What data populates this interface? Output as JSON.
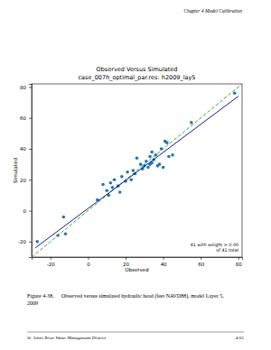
{
  "page": {
    "header": "Chapter 4 Model Calibration",
    "caption_label": "Figure 4-38.",
    "caption_lines": [
      "Observed versus simulated hydraulic head (feet NAVD88), model Layer 5,",
      "2009"
    ],
    "footer_left": "St. Johns River Water Management District",
    "footer_right": "4-61"
  },
  "chart_data": {
    "type": "scatter",
    "title": "Observed Versus Simulated",
    "subtitle": "case_007h_optimal_par.res: h2009_lay5",
    "x_label": "Observed",
    "y_label": "Simulated",
    "annotations": [
      "41 with weight > 0.00",
      "of 41 total"
    ],
    "xlim": [
      -30,
      82
    ],
    "xticks": [
      -20,
      0,
      20,
      40,
      60,
      80
    ],
    "ylim": [
      -30,
      82
    ],
    "yticks": [
      -20,
      0,
      20,
      40,
      60,
      80
    ],
    "grid": false,
    "series": [
      {
        "type": "scatter",
        "color": "#1f77b4",
        "marker": "circle",
        "x": [
          -27,
          -16,
          -13,
          -12,
          5,
          8,
          10,
          11,
          12,
          13,
          14,
          16,
          17,
          18,
          20,
          21,
          23,
          24,
          25,
          26,
          28,
          29,
          30,
          31,
          32,
          33,
          33,
          34,
          35,
          36,
          37,
          38,
          39,
          40,
          41,
          42,
          43,
          45,
          55,
          78,
          34
        ],
        "values": [
          -20,
          -16,
          -4,
          -15,
          7,
          17,
          13,
          10,
          18,
          15,
          20,
          16,
          12,
          22,
          19,
          25,
          20,
          26,
          24,
          34,
          30,
          27,
          29,
          32,
          28,
          30,
          35,
          31,
          33,
          36,
          29,
          30,
          40,
          28,
          45,
          44,
          35,
          36,
          57,
          76,
          38
        ]
      },
      {
        "type": "line",
        "color": "#2ca02c",
        "line_style": "dashed",
        "x": [
          -30,
          82
        ],
        "values": [
          -30,
          82
        ]
      },
      {
        "type": "line",
        "color": "#00008b",
        "line_style": "solid",
        "x": [
          -28,
          80
        ],
        "values": [
          -24,
          74
        ]
      }
    ]
  }
}
